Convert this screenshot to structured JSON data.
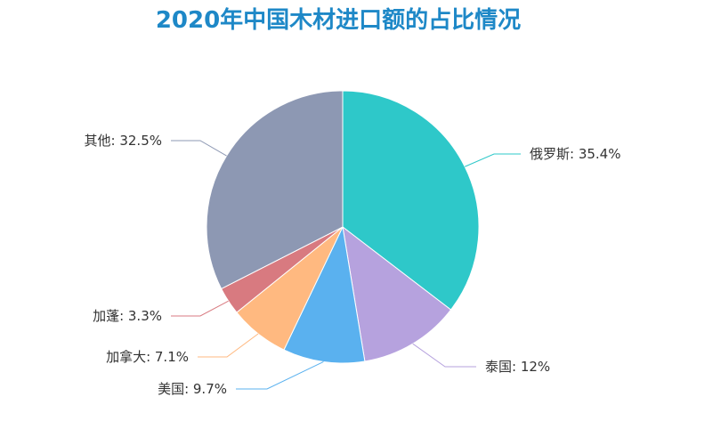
{
  "chart_data": {
    "type": "pie",
    "title": "2020年中国木材进口额的占比情况",
    "slices": [
      {
        "name": "俄罗斯",
        "value": 35.4,
        "label": "俄罗斯: 35.4%",
        "color": "#2ec8c9"
      },
      {
        "name": "泰国",
        "value": 12,
        "label": "泰国: 12%",
        "color": "#b6a2de"
      },
      {
        "name": "美国",
        "value": 9.7,
        "label": "美国: 9.7%",
        "color": "#5ab1ef"
      },
      {
        "name": "加拿大",
        "value": 7.1,
        "label": "加拿大: 7.1%",
        "color": "#ffb980"
      },
      {
        "name": "加蓬",
        "value": 3.3,
        "label": "加蓬: 3.3%",
        "color": "#d87a80"
      },
      {
        "name": "其他",
        "value": 32.5,
        "label": "其他: 32.5%",
        "color": "#8d98b3"
      }
    ],
    "legend": "none"
  }
}
